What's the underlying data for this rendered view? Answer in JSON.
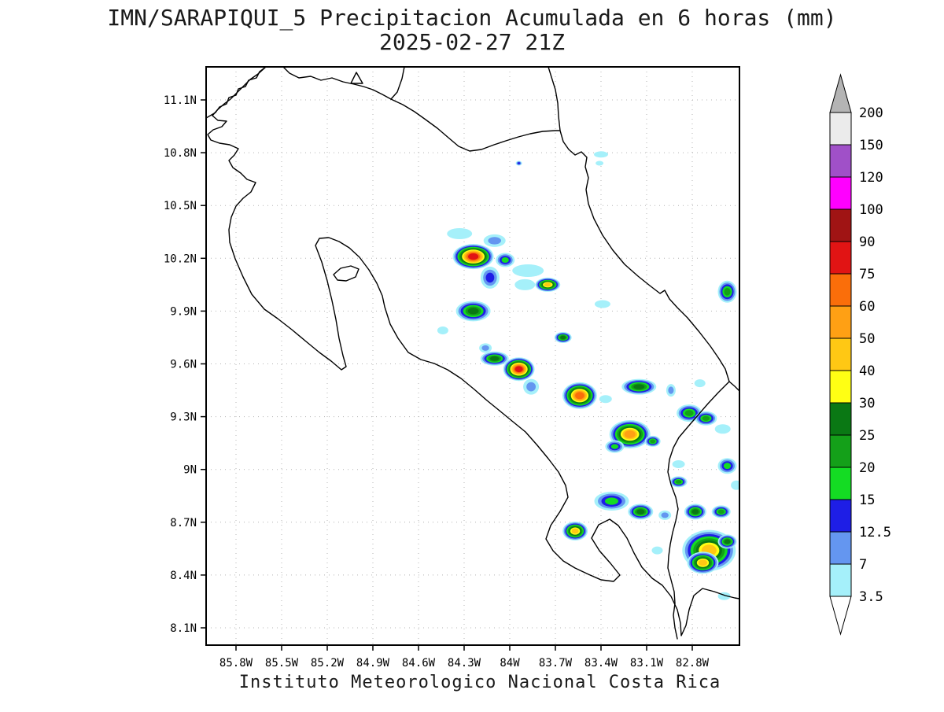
{
  "header": {
    "title_line1": "IMN/SARAPIQUI_5 Precipitacion Acumulada en 6 horas (mm)",
    "title_line2": "2025-02-27 21Z"
  },
  "footer": {
    "caption": "Instituto Meteorologico Nacional Costa Rica"
  },
  "chart_data": {
    "type": "heatmap",
    "title": "IMN/SARAPIQUI_5 Precipitacion Acumulada en 6 horas (mm)",
    "subtitle": "2025-02-27 21Z",
    "units": "mm",
    "region": "Costa Rica",
    "extent": {
      "lon_min": -86.0,
      "lon_max": -82.49,
      "lat_min": 8.0,
      "lat_max": 11.29
    },
    "x_axis": {
      "label": "",
      "ticks": [
        "85.8W",
        "85.5W",
        "85.2W",
        "84.9W",
        "84.6W",
        "84.3W",
        "84W",
        "83.7W",
        "83.4W",
        "83.1W",
        "82.8W"
      ]
    },
    "y_axis": {
      "label": "",
      "ticks": [
        "11.1N",
        "10.8N",
        "10.5N",
        "10.2N",
        "9.9N",
        "9.6N",
        "9.3N",
        "9N",
        "8.7N",
        "8.4N",
        "8.1N"
      ]
    },
    "grid": true,
    "legend_position": "right",
    "colorbar": {
      "levels": [
        3.5,
        7,
        12.5,
        15,
        20,
        25,
        30,
        40,
        50,
        60,
        75,
        90,
        100,
        120,
        150,
        200
      ],
      "colors": [
        "#A5F0FA",
        "#6496F0",
        "#1E1EE6",
        "#14DC23",
        "#14A019",
        "#0A7814",
        "#FFFF14",
        "#FFC814",
        "#FFA014",
        "#FA6E0A",
        "#E11414",
        "#A01414",
        "#FF00FF",
        "#A050C8",
        "#EBEBEB"
      ],
      "over_color": "#B4B4B4",
      "under_color": "#FFFFFF"
    },
    "cells": [
      {
        "lon": -84.33,
        "lat": 10.34,
        "rx": 16,
        "ry": 7,
        "max": 3.5
      },
      {
        "lon": -84.24,
        "lat": 10.21,
        "rx": 26,
        "ry": 16,
        "max": 75
      },
      {
        "lon": -84.1,
        "lat": 10.3,
        "rx": 14,
        "ry": 8,
        "max": 7
      },
      {
        "lon": -84.03,
        "lat": 10.19,
        "rx": 12,
        "ry": 9,
        "max": 15
      },
      {
        "lon": -84.13,
        "lat": 10.09,
        "rx": 12,
        "ry": 14,
        "max": 12.5
      },
      {
        "lon": -83.88,
        "lat": 10.13,
        "rx": 20,
        "ry": 8,
        "max": 3.5
      },
      {
        "lon": -83.9,
        "lat": 10.05,
        "rx": 13,
        "ry": 7,
        "max": 3.5
      },
      {
        "lon": -83.75,
        "lat": 10.05,
        "rx": 16,
        "ry": 9,
        "max": 40
      },
      {
        "lon": -83.39,
        "lat": 9.94,
        "rx": 10,
        "ry": 5,
        "max": 3.5
      },
      {
        "lon": -82.57,
        "lat": 10.01,
        "rx": 12,
        "ry": 14,
        "max": 20
      },
      {
        "lon": -84.24,
        "lat": 9.9,
        "rx": 22,
        "ry": 13,
        "max": 25
      },
      {
        "lon": -84.44,
        "lat": 9.79,
        "rx": 7,
        "ry": 5,
        "max": 3.5
      },
      {
        "lon": -84.16,
        "lat": 9.69,
        "rx": 8,
        "ry": 6,
        "max": 7
      },
      {
        "lon": -84.1,
        "lat": 9.63,
        "rx": 18,
        "ry": 9,
        "max": 25
      },
      {
        "lon": -83.94,
        "lat": 9.57,
        "rx": 20,
        "ry": 15,
        "max": 75
      },
      {
        "lon": -83.86,
        "lat": 9.47,
        "rx": 10,
        "ry": 10,
        "max": 7
      },
      {
        "lon": -83.65,
        "lat": 9.75,
        "rx": 11,
        "ry": 7,
        "max": 25
      },
      {
        "lon": -83.54,
        "lat": 9.42,
        "rx": 22,
        "ry": 17,
        "max": 60
      },
      {
        "lon": -83.37,
        "lat": 9.4,
        "rx": 8,
        "ry": 5,
        "max": 3.5
      },
      {
        "lon": -83.15,
        "lat": 9.47,
        "rx": 22,
        "ry": 10,
        "max": 25
      },
      {
        "lon": -82.94,
        "lat": 9.45,
        "rx": 6,
        "ry": 8,
        "max": 7
      },
      {
        "lon": -82.82,
        "lat": 9.32,
        "rx": 16,
        "ry": 11,
        "max": 20
      },
      {
        "lon": -82.71,
        "lat": 9.29,
        "rx": 14,
        "ry": 9,
        "max": 20
      },
      {
        "lon": -82.6,
        "lat": 9.23,
        "rx": 10,
        "ry": 6,
        "max": 3.5
      },
      {
        "lon": -83.21,
        "lat": 9.2,
        "rx": 26,
        "ry": 18,
        "max": 50
      },
      {
        "lon": -83.31,
        "lat": 9.13,
        "rx": 12,
        "ry": 8,
        "max": 15
      },
      {
        "lon": -83.06,
        "lat": 9.16,
        "rx": 10,
        "ry": 7,
        "max": 20
      },
      {
        "lon": -82.89,
        "lat": 9.03,
        "rx": 8,
        "ry": 5,
        "max": 3.5
      },
      {
        "lon": -82.57,
        "lat": 9.02,
        "rx": 12,
        "ry": 10,
        "max": 15
      },
      {
        "lon": -82.51,
        "lat": 8.91,
        "rx": 7,
        "ry": 6,
        "max": 3.5
      },
      {
        "lon": -82.89,
        "lat": 8.93,
        "rx": 11,
        "ry": 7,
        "max": 20
      },
      {
        "lon": -83.33,
        "lat": 8.82,
        "rx": 22,
        "ry": 12,
        "max": 15
      },
      {
        "lon": -83.14,
        "lat": 8.76,
        "rx": 16,
        "ry": 10,
        "max": 25
      },
      {
        "lon": -82.98,
        "lat": 8.74,
        "rx": 8,
        "ry": 6,
        "max": 7
      },
      {
        "lon": -82.78,
        "lat": 8.76,
        "rx": 14,
        "ry": 10,
        "max": 25
      },
      {
        "lon": -82.61,
        "lat": 8.76,
        "rx": 12,
        "ry": 8,
        "max": 20
      },
      {
        "lon": -83.57,
        "lat": 8.65,
        "rx": 16,
        "ry": 12,
        "max": 40
      },
      {
        "lon": -82.69,
        "lat": 8.54,
        "rx": 34,
        "ry": 26,
        "max": 40
      },
      {
        "lon": -82.73,
        "lat": 8.47,
        "rx": 20,
        "ry": 14,
        "max": 40
      },
      {
        "lon": -82.57,
        "lat": 8.59,
        "rx": 12,
        "ry": 9,
        "max": 25
      },
      {
        "lon": -83.03,
        "lat": 8.54,
        "rx": 7,
        "ry": 5,
        "max": 3.5
      },
      {
        "lon": -82.59,
        "lat": 8.28,
        "rx": 8,
        "ry": 5,
        "max": 3.5
      },
      {
        "lon": -83.4,
        "lat": 10.79,
        "rx": 9,
        "ry": 4,
        "max": 3.5
      },
      {
        "lon": -83.41,
        "lat": 10.74,
        "rx": 5,
        "ry": 3,
        "max": 3.5
      },
      {
        "lon": -83.94,
        "lat": 10.74,
        "rx": 4,
        "ry": 3,
        "max": 12.5
      },
      {
        "lon": -82.75,
        "lat": 9.49,
        "rx": 7,
        "ry": 5,
        "max": 3.5
      }
    ]
  }
}
